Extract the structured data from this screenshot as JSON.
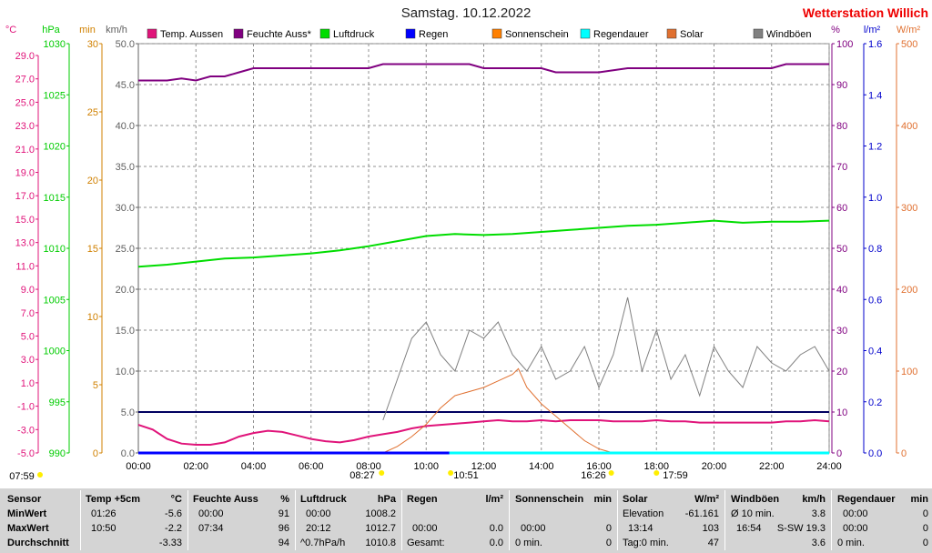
{
  "header": {
    "title": "Samstag. 10.12.2022",
    "brand": "Wetterstation Willich"
  },
  "axes": {
    "celsius": {
      "unit": "°C",
      "ticks": [
        "29.0",
        "27.0",
        "25.0",
        "23.0",
        "21.0",
        "19.0",
        "17.0",
        "15.0",
        "13.0",
        "11.0",
        "9.0",
        "7.0",
        "5.0",
        "3.0",
        "1.0",
        "-1.0",
        "-3.0",
        "-5.0"
      ]
    },
    "hpa": {
      "unit": "hPa",
      "ticks": [
        "1030",
        "1025",
        "1020",
        "1015",
        "1010",
        "1005",
        "1000",
        "995",
        "990"
      ]
    },
    "min": {
      "unit": "min",
      "ticks": [
        "30",
        "25",
        "20",
        "15",
        "10",
        "5",
        "0"
      ]
    },
    "kmh": {
      "unit": "km/h",
      "ticks": [
        "50.0",
        "45.0",
        "40.0",
        "35.0",
        "30.0",
        "25.0",
        "20.0",
        "15.0",
        "10.0",
        "5.0",
        "0.0"
      ]
    },
    "percent": {
      "unit": "%",
      "ticks": [
        "100",
        "90",
        "80",
        "70",
        "60",
        "50",
        "40",
        "30",
        "20",
        "10",
        "0"
      ]
    },
    "lm2": {
      "unit": "l/m²",
      "ticks": [
        "1.6",
        "1.4",
        "1.2",
        "1.0",
        "0.8",
        "0.6",
        "0.4",
        "0.2",
        "0.0"
      ]
    },
    "wm2": {
      "unit": "W/m²",
      "ticks": [
        "500",
        "400",
        "300",
        "200",
        "100",
        "0"
      ]
    },
    "time": {
      "ticks": [
        "00:00",
        "02:00",
        "04:00",
        "06:00",
        "08:00",
        "10:00",
        "12:00",
        "14:00",
        "16:00",
        "18:00",
        "20:00",
        "22:00",
        "24:00"
      ]
    }
  },
  "chart_data": {
    "type": "line",
    "title": "Samstag. 10.12.2022",
    "x_range_hours": [
      0,
      24
    ],
    "grid": true,
    "legend": [
      {
        "name": "Temp. Aussen",
        "color": "#e0147a"
      },
      {
        "name": "Feuchte Auss*",
        "color": "#800080"
      },
      {
        "name": "Luftdruck",
        "color": "#00dd00"
      },
      {
        "name": "Regen",
        "color": "#0000ff"
      },
      {
        "name": "Sonnenschein",
        "color": "#ff8000"
      },
      {
        "name": "Regendauer",
        "color": "#00ffff"
      },
      {
        "name": "Solar",
        "color": "#e07030"
      },
      {
        "name": "Windböen",
        "color": "#808080"
      }
    ],
    "series": [
      {
        "name": "Temp. Aussen",
        "unit": "°C",
        "color": "#e0147a",
        "x": [
          0,
          0.5,
          1,
          1.5,
          2,
          2.5,
          3,
          3.5,
          4,
          4.5,
          5,
          5.5,
          6,
          6.5,
          7,
          7.5,
          8,
          8.5,
          9,
          9.5,
          10,
          10.5,
          11,
          11.5,
          12,
          12.5,
          13,
          13.5,
          14,
          14.5,
          15,
          15.5,
          16,
          16.5,
          17,
          17.5,
          18,
          18.5,
          19,
          19.5,
          20,
          20.5,
          21,
          21.5,
          22,
          22.5,
          23,
          23.5,
          24
        ],
        "y": [
          -2.6,
          -3.0,
          -3.8,
          -4.2,
          -4.3,
          -4.3,
          -4.1,
          -3.6,
          -3.3,
          -3.1,
          -3.2,
          -3.5,
          -3.8,
          -4.0,
          -4.1,
          -3.9,
          -3.6,
          -3.4,
          -3.2,
          -2.9,
          -2.7,
          -2.6,
          -2.5,
          -2.4,
          -2.3,
          -2.2,
          -2.3,
          -2.3,
          -2.2,
          -2.3,
          -2.2,
          -2.2,
          -2.2,
          -2.3,
          -2.3,
          -2.3,
          -2.2,
          -2.3,
          -2.3,
          -2.4,
          -2.4,
          -2.4,
          -2.4,
          -2.4,
          -2.4,
          -2.3,
          -2.3,
          -2.2,
          -2.3
        ]
      },
      {
        "name": "Feuchte Auss*",
        "unit": "%",
        "color": "#800080",
        "x": [
          0,
          1,
          1.5,
          2,
          2.5,
          3,
          3.5,
          4,
          5,
          6,
          7,
          8,
          8.5,
          9,
          10,
          11,
          11.5,
          12,
          13,
          14,
          14.5,
          15,
          16,
          17,
          18,
          19,
          20,
          20.5,
          21,
          22,
          22.5,
          23,
          24
        ],
        "y": [
          91,
          91,
          91.5,
          91,
          92,
          92,
          93,
          94,
          94,
          94,
          94,
          94,
          95,
          95,
          95,
          95,
          95,
          94,
          94,
          94,
          93,
          93,
          93,
          94,
          94,
          94,
          94,
          94,
          94,
          94,
          95,
          95,
          95
        ]
      },
      {
        "name": "Luftdruck",
        "unit": "hPa",
        "color": "#00dd00",
        "x": [
          0,
          1,
          2,
          3,
          4,
          5,
          6,
          7,
          8,
          9,
          10,
          11,
          12,
          13,
          14,
          15,
          16,
          17,
          18,
          19,
          20,
          21,
          22,
          23,
          24
        ],
        "y": [
          1008.2,
          1008.4,
          1008.7,
          1009.0,
          1009.1,
          1009.3,
          1009.5,
          1009.8,
          1010.2,
          1010.7,
          1011.2,
          1011.4,
          1011.3,
          1011.4,
          1011.6,
          1011.8,
          1012.0,
          1012.2,
          1012.3,
          1012.5,
          1012.7,
          1012.5,
          1012.6,
          1012.6,
          1012.7
        ]
      },
      {
        "name": "Solar",
        "unit": "W/m²",
        "color": "#e07030",
        "x": [
          8.5,
          9,
          9.5,
          10,
          10.5,
          11,
          11.5,
          12,
          12.5,
          13,
          13.2,
          13.5,
          14,
          14.5,
          15,
          15.5,
          16,
          16.5
        ],
        "y": [
          0,
          8,
          20,
          35,
          55,
          70,
          75,
          80,
          88,
          96,
          103,
          80,
          60,
          45,
          30,
          15,
          5,
          0
        ]
      },
      {
        "name": "Windböen",
        "unit": "km/h",
        "color": "#808080",
        "x": [
          8.5,
          9,
          9.5,
          10,
          10.5,
          11,
          11.5,
          12,
          12.5,
          13,
          13.5,
          14,
          14.5,
          15,
          15.5,
          16,
          16.5,
          17,
          17.5,
          18,
          18.5,
          19,
          19.5,
          20,
          20.5,
          21,
          21.5,
          22,
          22.5,
          23,
          23.5,
          24
        ],
        "y": [
          4,
          9,
          14,
          16,
          12,
          10,
          15,
          14,
          16,
          12,
          10,
          13,
          9,
          10,
          13,
          8,
          12,
          19,
          10,
          15,
          9,
          12,
          7,
          13,
          10,
          8,
          13,
          11,
          10,
          12,
          13,
          10
        ]
      },
      {
        "name": "Regen",
        "unit": "l/m²",
        "color": "#0000ff",
        "x": [
          0,
          24
        ],
        "y": [
          0,
          0
        ]
      },
      {
        "name": "Regendauer",
        "unit": "min",
        "color": "#00ffff",
        "x": [
          10.8,
          24
        ],
        "y": [
          0,
          0
        ]
      }
    ],
    "reference_lines": [
      {
        "value_celsius": -1.5,
        "color": "#000060"
      }
    ],
    "axis_ranges": {
      "celsius": [
        -5,
        30
      ],
      "hpa": [
        990,
        1030
      ],
      "min": [
        0,
        30
      ],
      "kmh": [
        0,
        50
      ],
      "percent": [
        0,
        100
      ],
      "lm2": [
        0,
        1.6
      ],
      "wm2": [
        0,
        500
      ]
    }
  },
  "events": {
    "sunrise": "08:27",
    "sunset": "16:26",
    "event_left": "07:59",
    "event_mid": "10:51",
    "event_right": "17:59"
  },
  "stats": {
    "row_labels": {
      "sensor": "Sensor",
      "min": "MinWert",
      "max": "MaxWert",
      "avg": "Durchschnitt"
    },
    "temp": {
      "label": "Temp +5cm",
      "unit": "°C",
      "min_time": "01:26",
      "min": "-5.6",
      "max_time": "10:50",
      "max": "-2.2",
      "avg": "-3.33"
    },
    "humidity": {
      "label": "Feuchte Auss",
      "unit": "%",
      "min_time": "00:00",
      "min": "91",
      "max_time": "07:34",
      "max": "96",
      "avg": "94"
    },
    "pressure": {
      "label": "Luftdruck",
      "unit": "hPa",
      "min_time": "00:00",
      "min": "1008.2",
      "max_time": "20:12",
      "max": "1012.7",
      "avg_label": "^0.7hPa/h",
      "avg": "1010.8"
    },
    "rain": {
      "label": "Regen",
      "unit": "l/m²",
      "max_time": "00:00",
      "max": "0.0",
      "avg_label": "Gesamt:",
      "avg": "0.0"
    },
    "sunshine": {
      "label": "Sonnenschein",
      "unit": "min",
      "max_time": "00:00",
      "max": "0",
      "avg_label": "0 min.",
      "avg": "0"
    },
    "solar": {
      "label": "Solar",
      "unit": "W/m²",
      "min_label": "Elevation",
      "min": "-61.161",
      "max_time": "13:14",
      "max": "103",
      "avg_label": "Tag:0 min.",
      "avg": "47"
    },
    "wind": {
      "label": "Windböen",
      "unit": "km/h",
      "min_label": "Ø 10 min.",
      "min": "3.8",
      "max_time": "16:54",
      "max": "S-SW 19.3",
      "avg": "3.6"
    },
    "raindur": {
      "label": "Regendauer",
      "unit": "min",
      "min_time": "00:00",
      "min": "0",
      "max_time": "00:00",
      "max": "0",
      "avg_label": "0 min.",
      "avg": "0"
    }
  }
}
